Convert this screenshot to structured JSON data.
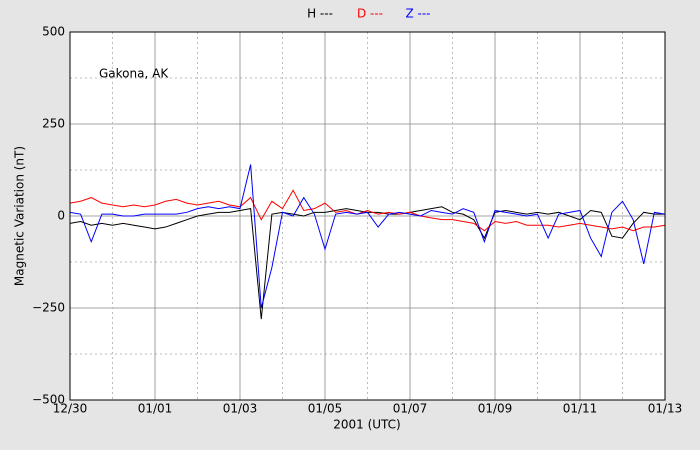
{
  "chart_data": {
    "type": "line",
    "ylabel": "Magnetic Variation (nT)",
    "xlabel": "2001 (UTC)",
    "annotation": "Gakona, AK",
    "x": [
      0,
      0.25,
      0.5,
      0.75,
      1,
      1.25,
      1.5,
      1.75,
      2,
      2.25,
      2.5,
      2.75,
      3,
      3.25,
      3.5,
      3.75,
      4,
      4.25,
      4.5,
      4.75,
      5,
      5.25,
      5.5,
      5.75,
      6,
      6.25,
      6.5,
      6.75,
      7,
      7.25,
      7.5,
      7.75,
      8,
      8.25,
      8.5,
      8.75,
      9,
      9.25,
      9.5,
      9.75,
      10,
      10.25,
      10.5,
      10.75,
      11,
      11.25,
      11.5,
      11.75,
      12,
      12.25,
      12.5,
      12.75,
      13,
      13.25,
      13.5,
      13.75,
      14
    ],
    "series": [
      {
        "name": "H ---",
        "color": "#000000",
        "values": [
          -20,
          -15,
          -25,
          -20,
          -25,
          -20,
          -25,
          -30,
          -35,
          -30,
          -20,
          -10,
          0,
          5,
          10,
          10,
          15,
          20,
          -280,
          5,
          10,
          5,
          0,
          10,
          10,
          15,
          20,
          15,
          10,
          10,
          5,
          5,
          10,
          15,
          20,
          25,
          10,
          5,
          -10,
          -60,
          10,
          15,
          10,
          5,
          10,
          5,
          10,
          0,
          -10,
          15,
          10,
          -55,
          -60,
          -20,
          10,
          5,
          5
        ]
      },
      {
        "name": "D ---",
        "color": "#ff0000",
        "values": [
          35,
          40,
          50,
          35,
          30,
          25,
          30,
          25,
          30,
          40,
          45,
          35,
          30,
          35,
          40,
          30,
          25,
          50,
          -10,
          40,
          20,
          70,
          15,
          20,
          35,
          10,
          15,
          5,
          15,
          5,
          10,
          5,
          10,
          0,
          -5,
          -10,
          -10,
          -15,
          -20,
          -40,
          -15,
          -20,
          -15,
          -25,
          -25,
          -25,
          -30,
          -25,
          -20,
          -25,
          -30,
          -35,
          -30,
          -40,
          -30,
          -30,
          -25
        ]
      },
      {
        "name": "Z ---",
        "color": "#0000ff",
        "values": [
          10,
          5,
          -70,
          5,
          5,
          0,
          0,
          5,
          5,
          5,
          5,
          10,
          20,
          25,
          20,
          25,
          20,
          140,
          -250,
          -140,
          10,
          0,
          50,
          5,
          -90,
          5,
          10,
          5,
          10,
          -30,
          5,
          10,
          5,
          0,
          15,
          10,
          5,
          20,
          10,
          -70,
          15,
          10,
          5,
          0,
          5,
          -60,
          5,
          10,
          15,
          -60,
          -110,
          10,
          40,
          -10,
          -130,
          10,
          5
        ]
      }
    ],
    "xlim": [
      0,
      14
    ],
    "xticks": [
      {
        "value": 0,
        "label": "12/30"
      },
      {
        "value": 2,
        "label": "01/01"
      },
      {
        "value": 4,
        "label": "01/03"
      },
      {
        "value": 6,
        "label": "01/05"
      },
      {
        "value": 8,
        "label": "01/07"
      },
      {
        "value": 10,
        "label": "01/09"
      },
      {
        "value": 12,
        "label": "01/11"
      },
      {
        "value": 14,
        "label": "01/13"
      }
    ],
    "xminorticks": [
      1,
      3,
      5,
      7,
      9,
      11,
      13
    ],
    "ylim": [
      -500,
      500
    ],
    "yticks": [
      {
        "value": -500,
        "label": "−500"
      },
      {
        "value": -250,
        "label": "−250"
      },
      0,
      250,
      500
    ],
    "yminorticks": [
      -375,
      -125,
      125,
      375
    ],
    "grid": true
  }
}
